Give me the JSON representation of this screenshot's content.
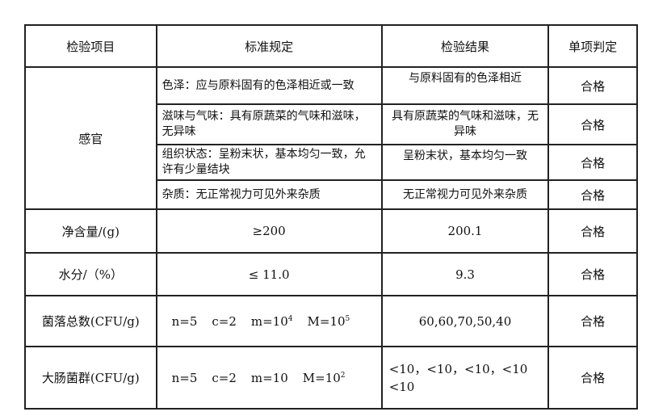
{
  "headers": [
    "检验项目",
    "标准规定",
    "检验结果",
    "单项判定"
  ],
  "sensory": {
    "label": "感官",
    "rows": [
      {
        "standard": "色泽：应与原料固有的色泽相近或一致",
        "result": "与原料固有的色泽相近",
        "verdict": "合格"
      },
      {
        "standard": "滋味与气味：具有原蔬菜的气味和滋味，无异味",
        "result": "具有原蔬菜的气味和滋味，无异味",
        "verdict": "合格"
      },
      {
        "standard": "组织状态：呈粉末状，基本均匀一致，允许有少量结块",
        "result": "呈粉末状，基本均匀一致",
        "verdict": "合格"
      },
      {
        "standard": "杂质：无正常视力可见外来杂质",
        "result": "无正常视力可见外来杂质",
        "verdict": "合格"
      }
    ]
  },
  "net": {
    "label": "净含量/(g)",
    "standard": "≥200",
    "result": "200.1",
    "verdict": "合格"
  },
  "moisture": {
    "label": "水分/（%）",
    "standard": "≤ 11.0",
    "result": "9.3",
    "verdict": "合格"
  },
  "colony": {
    "label": "菌落总数(CFU/g)",
    "n": "n=5",
    "c": "c=2",
    "m": "m=10",
    "m_exp": "4",
    "M": "M=10",
    "M_exp": "5",
    "result": "60,60,70,50,40",
    "verdict": "合格"
  },
  "coliform": {
    "label": "大肠菌群(CFU/g)",
    "n": "n=5",
    "c": "c=2",
    "m": "m=10",
    "M": "M=10",
    "M_exp": "2",
    "result": "<10，<10，<10，<10 <10",
    "verdict": "合格"
  }
}
